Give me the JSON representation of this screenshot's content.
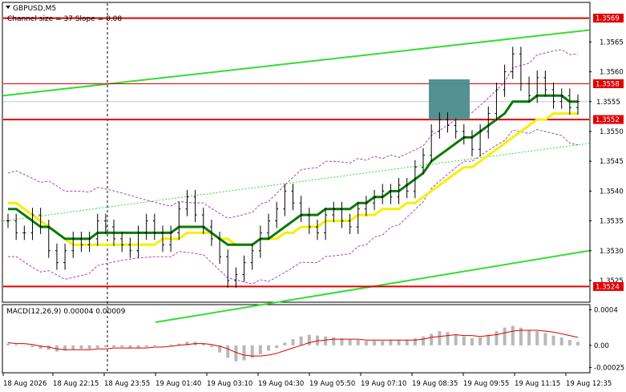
{
  "header": {
    "symbol": "GBPUSD,M5",
    "channel_info": "Channel size = 37 Slope = 0.08",
    "macd_label": "MACD(12,26,9) 0.00004 0.00009"
  },
  "colors": {
    "candle": "#000000",
    "level_line": "#e00000",
    "channel_line": "#33dd33",
    "channel_mid": "#33dd33",
    "ma_green": "#0a7a0a",
    "ma_yellow": "#f5f000",
    "bollinger": "#b040c0",
    "macd_hist": "#b8b8b8",
    "macd_signal": "#e00000",
    "box_fill": "#4a8c8c"
  },
  "chart_data": [
    {
      "type": "candlestick",
      "title": "GBPUSD,M5",
      "subtitle": "Channel size = 37 Slope = 0.08",
      "ylim": [
        1.35215,
        1.35715
      ],
      "x_ticks": [
        "18 Aug 2026",
        "18 Aug 22:15",
        "18 Aug 23:55",
        "19 Aug 01:40",
        "19 Aug 03:10",
        "19 Aug 04:30",
        "19 Aug 05:50",
        "19 Aug 07:10",
        "19 Aug 08:35",
        "19 Aug 09:55",
        "19 Aug 11:15",
        "19 Aug 12:35"
      ],
      "y_ticks": [
        "1.3565",
        "1.3560",
        "1.3555",
        "1.3550",
        "1.3545",
        "1.3540",
        "1.3535",
        "1.3530",
        "1.3525"
      ],
      "y_tick_values": [
        1.3565,
        1.356,
        1.3555,
        1.355,
        1.3545,
        1.354,
        1.3535,
        1.353,
        1.3525
      ],
      "levels": [
        {
          "label": "1.3569",
          "value": 1.3569
        },
        {
          "label": "1.3558",
          "value": 1.3558
        },
        {
          "label": "1.3552",
          "value": 1.3552
        },
        {
          "label": "1.3524",
          "value": 1.3524
        }
      ],
      "current_price": {
        "label": "1.3555",
        "value": 1.3555
      },
      "close": [
        1.3535,
        1.3533,
        1.3533,
        1.3536,
        1.3534,
        1.353,
        1.3528,
        1.353,
        1.3532,
        1.3531,
        1.3532,
        1.3535,
        1.3534,
        1.3532,
        1.3531,
        1.353,
        1.3533,
        1.3535,
        1.3533,
        1.3531,
        1.3533,
        1.3537,
        1.3539,
        1.3536,
        1.3534,
        1.3532,
        1.3529,
        1.3525,
        1.3526,
        1.3528,
        1.353,
        1.3533,
        1.3535,
        1.3537,
        1.354,
        1.3538,
        1.3536,
        1.3534,
        1.3533,
        1.3536,
        1.3537,
        1.3535,
        1.3534,
        1.3537,
        1.3538,
        1.3539,
        1.354,
        1.3539,
        1.3541,
        1.354,
        1.3544,
        1.3546,
        1.355,
        1.3552,
        1.3551,
        1.355,
        1.3549,
        1.3547,
        1.355,
        1.3553,
        1.3557,
        1.356,
        1.3563,
        1.3558,
        1.3556,
        1.3559,
        1.3557,
        1.3555,
        1.3556,
        1.3554,
        1.3555
      ],
      "sma_green": [
        1.3537,
        1.3537,
        1.3536,
        1.3535,
        1.3534,
        1.3534,
        1.3533,
        1.3532,
        1.3532,
        1.3532,
        1.3532,
        1.3533,
        1.3533,
        1.3533,
        1.3533,
        1.3533,
        1.3533,
        1.3533,
        1.3533,
        1.3533,
        1.3533,
        1.3534,
        1.3534,
        1.3534,
        1.3534,
        1.3533,
        1.3532,
        1.3531,
        1.3531,
        1.3531,
        1.3531,
        1.3532,
        1.3532,
        1.3533,
        1.3534,
        1.3535,
        1.3536,
        1.3536,
        1.3536,
        1.3537,
        1.3537,
        1.3537,
        1.3537,
        1.3538,
        1.3538,
        1.3539,
        1.3539,
        1.354,
        1.354,
        1.3541,
        1.3542,
        1.3543,
        1.3545,
        1.3546,
        1.3547,
        1.3548,
        1.3549,
        1.3549,
        1.355,
        1.3551,
        1.3552,
        1.3553,
        1.3555,
        1.3555,
        1.3555,
        1.3556,
        1.3556,
        1.3556,
        1.3556,
        1.3555,
        1.3555
      ],
      "sma_yellow": [
        1.3538,
        1.3538,
        1.3537,
        1.3536,
        1.3535,
        1.3534,
        1.3533,
        1.3532,
        1.3531,
        1.3531,
        1.3531,
        1.3531,
        1.3531,
        1.3531,
        1.3531,
        1.3531,
        1.3531,
        1.3531,
        1.3531,
        1.3532,
        1.3532,
        1.3532,
        1.3533,
        1.3533,
        1.3533,
        1.3533,
        1.3532,
        1.3532,
        1.3531,
        1.3531,
        1.3531,
        1.3532,
        1.3532,
        1.3532,
        1.3533,
        1.3533,
        1.3534,
        1.3534,
        1.3534,
        1.3535,
        1.3535,
        1.3535,
        1.3535,
        1.3536,
        1.3536,
        1.3536,
        1.3537,
        1.3537,
        1.3537,
        1.3538,
        1.3538,
        1.3539,
        1.354,
        1.3541,
        1.3542,
        1.3543,
        1.3544,
        1.3544,
        1.3545,
        1.3546,
        1.3547,
        1.3548,
        1.3549,
        1.355,
        1.3551,
        1.3552,
        1.3552,
        1.3553,
        1.3553,
        1.3553,
        1.3553
      ],
      "channel_upper": [
        1.3556,
        1.3567
      ],
      "channel_lower": [
        1.3518,
        1.353
      ],
      "channel_mid": [
        1.3535,
        1.3548
      ]
    },
    {
      "type": "bar",
      "title": "MACD(12,26,9) 0.00004 0.00009",
      "ylim": [
        -0.0003,
        0.00045
      ],
      "y_ticks": [
        "0.0004",
        "0.00",
        "-0.00025"
      ],
      "y_tick_values": [
        0.0004,
        0.0,
        -0.00025
      ],
      "histogram": [
        2e-05,
        1e-05,
        0.0,
        -2e-05,
        -4e-05,
        -5e-05,
        -7e-05,
        -6e-05,
        -5e-05,
        -4e-05,
        -4e-05,
        -3e-05,
        -2e-05,
        -2e-05,
        -2e-05,
        -3e-05,
        -3e-05,
        -2e-05,
        -1e-05,
        0.0,
        1e-05,
        2e-05,
        4e-05,
        4e-05,
        2e-05,
        -2e-05,
        -8e-05,
        -0.00014,
        -0.00018,
        -0.00017,
        -0.00014,
        -0.0001,
        -6e-05,
        -3e-05,
        3e-05,
        7e-05,
        0.0001,
        0.00012,
        0.00011,
        0.0001,
        9e-05,
        8e-05,
        7e-05,
        6e-05,
        5e-05,
        5e-05,
        5e-05,
        6e-05,
        6e-05,
        6e-05,
        8e-05,
        0.0001,
        0.00013,
        0.00016,
        0.00015,
        0.00012,
        0.0001,
        8e-05,
        9e-05,
        0.00012,
        0.00016,
        0.0002,
        0.00022,
        0.0002,
        0.00017,
        0.00016,
        0.00014,
        0.00011,
        9e-05,
        6e-05,
        4e-05
      ],
      "signal": [
        3e-05,
        2e-05,
        2e-05,
        1e-05,
        -1e-05,
        -2e-05,
        -4e-05,
        -5e-05,
        -5e-05,
        -5e-05,
        -5e-05,
        -4e-05,
        -4e-05,
        -3e-05,
        -3e-05,
        -3e-05,
        -3e-05,
        -3e-05,
        -2e-05,
        -2e-05,
        -1e-05,
        0.0,
        1e-05,
        2e-05,
        2e-05,
        1e-05,
        -1e-05,
        -4e-05,
        -8e-05,
        -0.00011,
        -0.00012,
        -0.00012,
        -0.00011,
        -9e-05,
        -6e-05,
        -3e-05,
        0.0,
        3e-05,
        5e-05,
        6e-05,
        7e-05,
        7e-05,
        7e-05,
        7e-05,
        6e-05,
        6e-05,
        6e-05,
        6e-05,
        6e-05,
        6e-05,
        6e-05,
        7e-05,
        9e-05,
        0.0001,
        0.00011,
        0.00012,
        0.00011,
        0.00011,
        0.0001,
        0.00011,
        0.00012,
        0.00014,
        0.00016,
        0.00017,
        0.00017,
        0.00017,
        0.00016,
        0.00015,
        0.00013,
        0.00011,
        9e-05
      ]
    }
  ]
}
